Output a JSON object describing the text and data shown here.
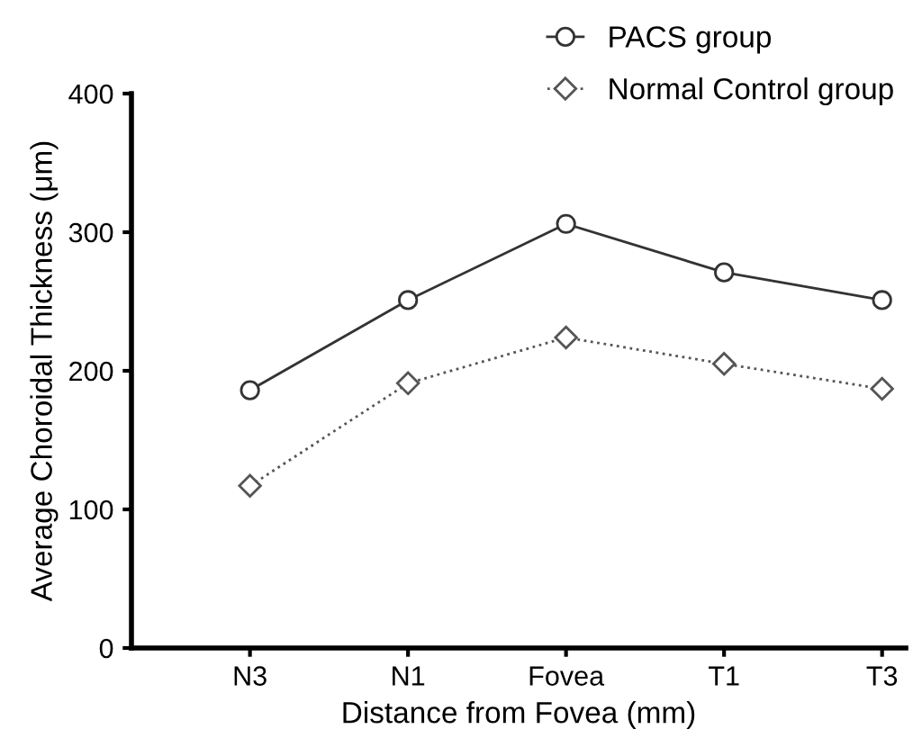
{
  "chart_data": {
    "type": "line",
    "xlabel": "Distance from Fovea (mm)",
    "ylabel": "Average Choroidal Thickness (μm)",
    "categories": [
      "N3",
      "N1",
      "Fovea",
      "T1",
      "T3"
    ],
    "series": [
      {
        "name": "PACS group",
        "color": "#333333",
        "values": [
          186,
          251,
          306,
          271,
          251
        ],
        "marker": "circle",
        "line_style": "solid"
      },
      {
        "name": "Normal Control group",
        "color": "#555555",
        "values": [
          117,
          191,
          224,
          205,
          187
        ],
        "marker": "diamond",
        "line_style": "dotted"
      }
    ],
    "ylim": [
      0,
      400
    ],
    "yticks": [
      0,
      100,
      200,
      300,
      400
    ],
    "grid": false,
    "legend": "top right"
  }
}
